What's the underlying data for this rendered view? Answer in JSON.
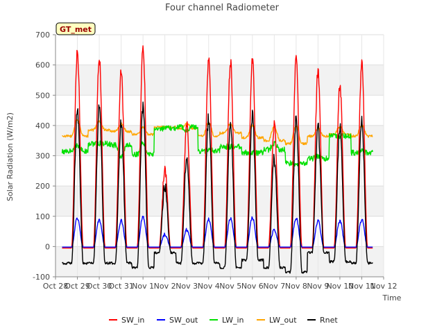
{
  "chart_data": {
    "type": "line",
    "title": "Four channel Radiometer",
    "site_label": "GT_met",
    "xlabel": "Time",
    "ylabel": "Solar Radiation (W/m2)",
    "xlim": [
      0,
      15
    ],
    "ylim": [
      -100,
      700
    ],
    "x_ticks": [
      {
        "x": 0,
        "label": "Oct 28"
      },
      {
        "x": 1,
        "label": "Oct 29"
      },
      {
        "x": 2,
        "label": "Oct 30"
      },
      {
        "x": 3,
        "label": "Oct 31"
      },
      {
        "x": 4,
        "label": "Nov 1"
      },
      {
        "x": 5,
        "label": "Nov 2"
      },
      {
        "x": 6,
        "label": "Nov 3"
      },
      {
        "x": 7,
        "label": "Nov 4"
      },
      {
        "x": 8,
        "label": "Nov 5"
      },
      {
        "x": 9,
        "label": "Nov 6"
      },
      {
        "x": 10,
        "label": "Nov 7"
      },
      {
        "x": 11,
        "label": "Nov 8"
      },
      {
        "x": 12,
        "label": "Nov 9"
      },
      {
        "x": 13,
        "label": "Nov 10"
      },
      {
        "x": 14,
        "label": "Nov 11"
      },
      {
        "x": 15,
        "label": "Nov 12"
      }
    ],
    "y_ticks": [
      -100,
      0,
      100,
      200,
      300,
      400,
      500,
      600,
      700
    ],
    "x_data_start": 0.3,
    "x_data_end": 14.5,
    "days": [
      "Oct 29",
      "Oct 30",
      "Oct 31",
      "Nov 1",
      "Nov 2",
      "Nov 3",
      "Nov 4",
      "Nov 5",
      "Nov 6",
      "Nov 7",
      "Nov 8",
      "Nov 9",
      "Nov 10",
      "Nov 11"
    ],
    "day_peaks": {
      "SW_in": [
        645,
        625,
        580,
        655,
        250,
        410,
        620,
        610,
        620,
        400,
        625,
        585,
        540,
        600
      ],
      "SW_out": [
        95,
        90,
        85,
        100,
        40,
        55,
        90,
        95,
        95,
        55,
        95,
        85,
        85,
        90
      ],
      "LW_in": [
        335,
        340,
        295,
        340,
        390,
        385,
        320,
        330,
        310,
        340,
        270,
        300,
        365,
        315
      ],
      "LW_out": [
        420,
        415,
        405,
        395,
        395,
        405,
        410,
        405,
        400,
        395,
        400,
        390,
        395,
        400
      ],
      "Rnet": [
        455,
        455,
        415,
        460,
        200,
        295,
        425,
        420,
        430,
        290,
        415,
        395,
        400,
        415
      ]
    },
    "night_levels": {
      "SW_in": -5,
      "SW_out": -2,
      "LW_in": [
        315,
        340,
        335,
        305,
        390,
        395,
        315,
        330,
        310,
        320,
        275,
        290,
        365,
        310
      ],
      "LW_out": [
        365,
        385,
        380,
        370,
        395,
        390,
        365,
        375,
        360,
        350,
        340,
        365,
        370,
        365
      ],
      "Rnet": [
        -55,
        -55,
        -55,
        -70,
        -20,
        -55,
        -55,
        -70,
        -45,
        -70,
        -85,
        -20,
        -50,
        -55
      ]
    },
    "series": [
      {
        "name": "SW_in",
        "color": "#ff0000"
      },
      {
        "name": "SW_out",
        "color": "#0000ff"
      },
      {
        "name": "LW_in",
        "color": "#00e000"
      },
      {
        "name": "LW_out",
        "color": "#ffa500"
      },
      {
        "name": "Rnet",
        "color": "#000000"
      }
    ],
    "grid": true,
    "legend_position": "bottom-center"
  }
}
